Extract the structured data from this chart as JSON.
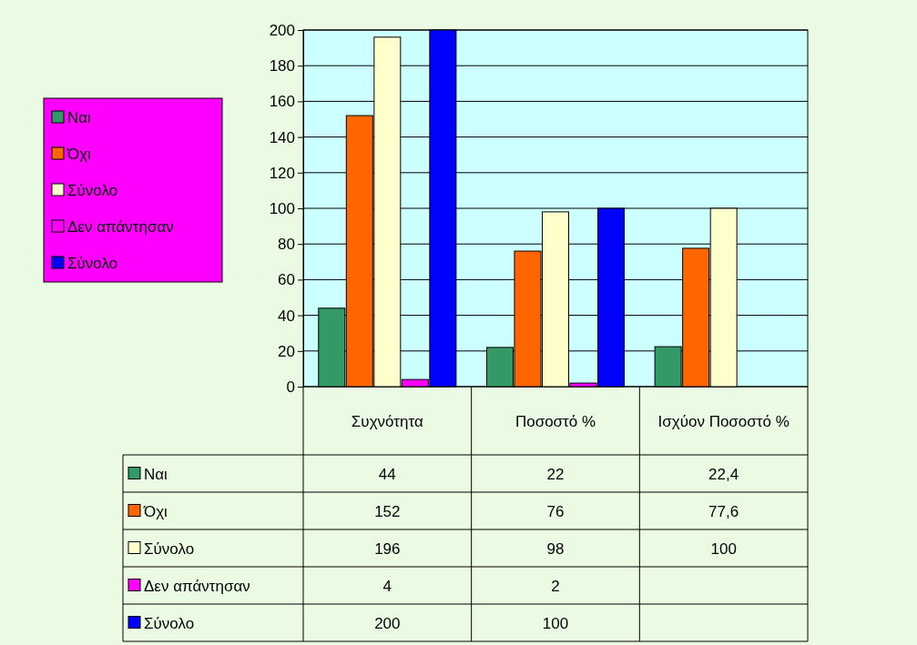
{
  "chart_data": {
    "type": "bar",
    "categories": [
      "Συχνότητα",
      "Ποσοστό %",
      "Ισχύον Ποσοστό %"
    ],
    "series": [
      {
        "name": "Ναι",
        "color": "#339966",
        "values": [
          44,
          22,
          22.4
        ],
        "value_labels": [
          "44",
          "22",
          "22,4"
        ]
      },
      {
        "name": "Όχι",
        "color": "#ff6600",
        "values": [
          152,
          76,
          77.6
        ],
        "value_labels": [
          "152",
          "76",
          "77,6"
        ]
      },
      {
        "name": "Σύνολο",
        "color": "#ffffcc",
        "values": [
          196,
          98,
          100
        ],
        "value_labels": [
          "196",
          "98",
          "100"
        ]
      },
      {
        "name": "Δεν απάντησαν",
        "color": "#ff00ff",
        "values": [
          4,
          2,
          null
        ],
        "value_labels": [
          "4",
          "2",
          null
        ]
      },
      {
        "name": "Σύνολο",
        "color": "#0000ff",
        "values": [
          200,
          100,
          null
        ],
        "value_labels": [
          "200",
          "100",
          null
        ]
      }
    ],
    "ylim": [
      0,
      200
    ],
    "yticks": [
      0,
      20,
      40,
      60,
      80,
      100,
      120,
      140,
      160,
      180,
      200
    ],
    "grid": "y",
    "legend": "left"
  }
}
